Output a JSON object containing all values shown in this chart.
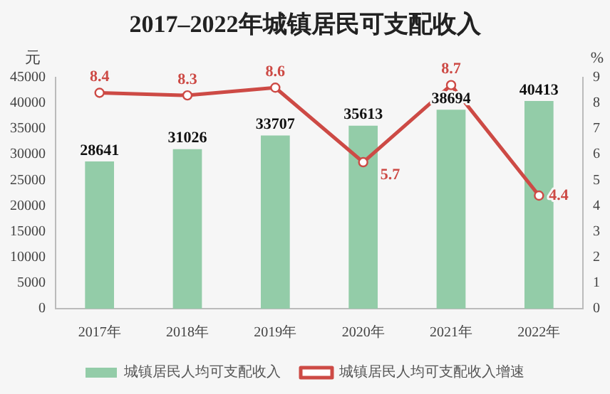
{
  "chart_data": {
    "type": "bar",
    "title": "2017–2022年城镇居民可支配收入",
    "ylabel": "元",
    "y2label": "%",
    "categories": [
      "2017年",
      "2018年",
      "2019年",
      "2020年",
      "2021年",
      "2022年"
    ],
    "series": [
      {
        "name": "城镇居民人均可支配收入",
        "color": "#93cca8",
        "values": [
          28641,
          31026,
          33707,
          35613,
          38694,
          40413
        ]
      },
      {
        "name": "城镇居民人均可支配收入增速",
        "type": "line",
        "axis": "y2",
        "color": "#cd4a45",
        "values": [
          8.4,
          8.3,
          8.6,
          5.7,
          8.7,
          4.4
        ]
      }
    ],
    "ylim": [
      0,
      45000
    ],
    "yticks": [
      0,
      5000,
      10000,
      15000,
      20000,
      25000,
      30000,
      35000,
      40000,
      45000
    ],
    "y2lim": [
      0,
      9
    ],
    "y2ticks": [
      0,
      1,
      2,
      3,
      4,
      5,
      6,
      7,
      8,
      9
    ],
    "data_labels": true,
    "legend": "bottom",
    "marker": "circle",
    "grid": false
  }
}
